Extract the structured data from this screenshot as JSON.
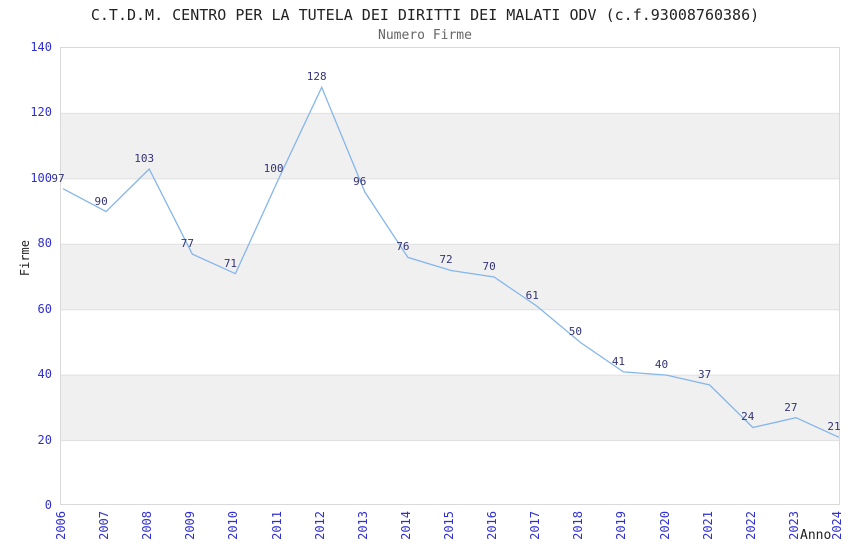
{
  "chart_data": {
    "type": "line",
    "title": "C.T.D.M. CENTRO PER LA TUTELA DEI DIRITTI DEI MALATI ODV (c.f.93008760386)",
    "subtitle": "Numero Firme",
    "x": [
      "2006",
      "2007",
      "2008",
      "2009",
      "2010",
      "2011",
      "2012",
      "2013",
      "2014",
      "2015",
      "2016",
      "2017",
      "2018",
      "2019",
      "2020",
      "2021",
      "2022",
      "2023",
      "2024"
    ],
    "values": [
      97,
      90,
      103,
      77,
      71,
      100,
      128,
      96,
      76,
      72,
      70,
      61,
      50,
      41,
      40,
      37,
      24,
      27,
      21
    ],
    "xlabel": "Anno",
    "ylabel": "Firme",
    "ylim": [
      0,
      140
    ],
    "ytick_step": 20,
    "yticks": [
      0,
      20,
      40,
      60,
      80,
      100,
      120,
      140
    ],
    "grid": "horizontal-bands",
    "legend": "none",
    "point_labels_visible": true,
    "colors": {
      "line": "#85b6ea",
      "point_label": "#333377",
      "tick_label": "#3030d0",
      "axis_title": "#222222",
      "title": "#222222",
      "subtitle": "#666666",
      "band": "#f0f0f0",
      "gridline": "#e0e0e0",
      "border": "#d9d9d9",
      "background": "#ffffff"
    }
  }
}
